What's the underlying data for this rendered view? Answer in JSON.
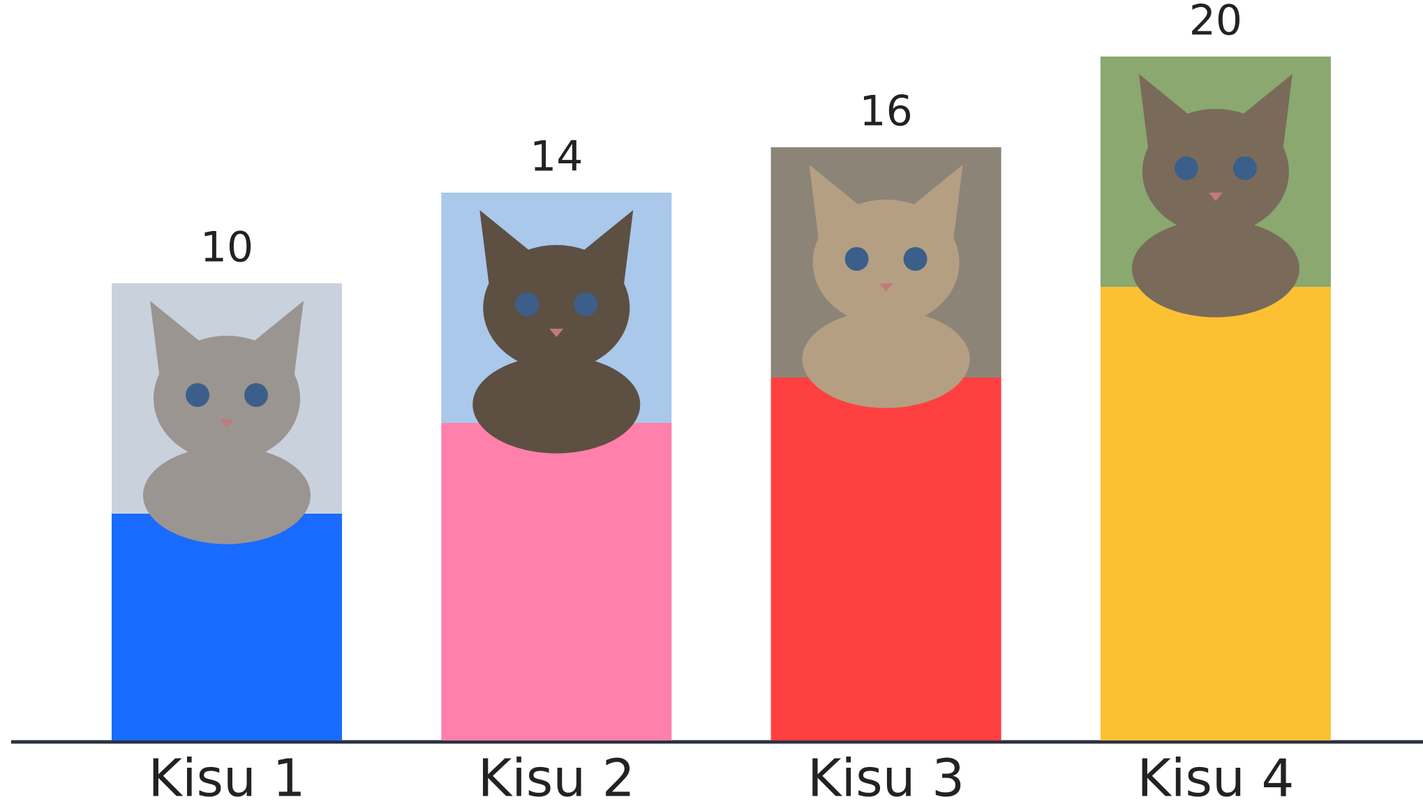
{
  "chart_data": {
    "type": "bar",
    "categories": [
      "Kisu 1",
      "Kisu 2",
      "Kisu 3",
      "Kisu 4"
    ],
    "values": [
      10,
      14,
      16,
      20
    ],
    "colors": [
      "#1a6bff",
      "#ff80aa",
      "#ff4040",
      "#fcc133"
    ]
  }
}
